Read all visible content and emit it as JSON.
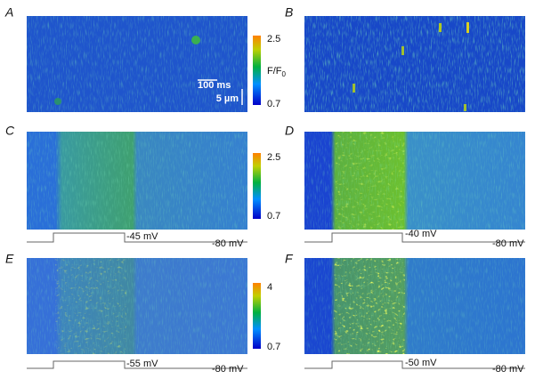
{
  "panels": [
    {
      "label": "A"
    },
    {
      "label": "B"
    },
    {
      "label": "C"
    },
    {
      "label": "D"
    },
    {
      "label": "E"
    },
    {
      "label": "F"
    }
  ],
  "colorbars": [
    {
      "max": 2.5,
      "label": "F/F",
      "sub": "0",
      "min": 0.7
    },
    {
      "max": 2.5,
      "min": 0.7
    },
    {
      "max": 4,
      "min": 0.7
    }
  ],
  "scale_bar": {
    "time": "100 ms",
    "length": "5 µm"
  },
  "traces": [
    {
      "step": "-45 mV",
      "hold": "-80 mV"
    },
    {
      "step": "-40 mV",
      "hold": "-80 mV"
    },
    {
      "step": "-55 mV",
      "hold": "-80 mV"
    },
    {
      "step": "-50 mV",
      "hold": "-80 mV"
    }
  ]
}
